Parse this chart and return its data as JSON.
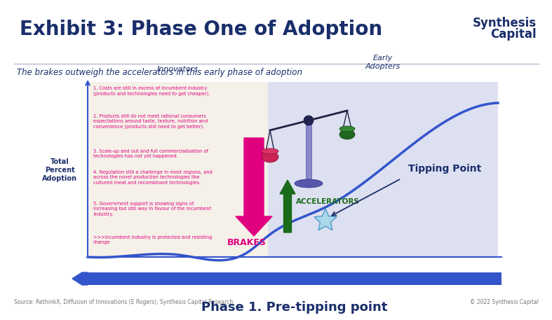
{
  "bg_color": "#ffffff",
  "title": "Exhibit 3: Phase One of Adoption",
  "title_color": "#1a2e6b",
  "title_fontsize": 20,
  "subtitle": "The brakes outweigh the accelerators in this early phase of adoption",
  "subtitle_color": "#1a2e6b",
  "subtitle_fontsize": 8.5,
  "logo_line1": "Synthesis",
  "logo_line2": "Capital",
  "logo_color": "#1a2e6b",
  "footer_left": "Source: RethinkX, Diffusion of Innovations (E Rogers), Synthesis Capital Research",
  "footer_right": "© 2022 Synthesis Capital",
  "footer_color": "#777777",
  "footer_fontsize": 5.5,
  "y_axis_label": "Total\nPercent\nAdoption",
  "y_axis_color": "#1a2e6b",
  "innovators_label": "Innovators",
  "early_adopters_label": "Early\nAdopters",
  "label_color": "#1a2e6b",
  "box_bg_color": "#f5f0e8",
  "box_bg_color2": "#dde0f0",
  "bullet_text_color": "#e0007f",
  "bullet_points": [
    "1. Costs are still in excess of incumbent industry\n(products and technologies need to get cheaper).",
    "2. Products still do not meet rational consumers\nexpectations around taste, texture, nutrition and\nconvenience (products still need to get better).",
    "3. Scale-up and out and full commercialisation of\ntechnologies has not yet happened.",
    "4. Regulation still a challenge in most regions, and\nacross the novel production technologies like\ncultured meat and recombinant technologies.",
    "5. Government support is showing signs of\nincreasing but still way in favour of the incumbent\nindustry."
  ],
  "incumbent_text": ">>>Incumbent industry is protected and resisting\nchange",
  "brakes_label": "BRAKES",
  "brakes_color": "#e0007f",
  "accelerators_label": "ACCELERATORS",
  "accelerators_color": "#1a6b1a",
  "tipping_point_label": "Tipping Point",
  "tipping_point_color": "#1a2e6b",
  "phase_label": "Phase 1. Pre-tipping point",
  "phase_color": "#1a2e6b",
  "phase_fontsize": 13,
  "curve_color": "#3355cc",
  "bar_color": "#3355cc",
  "divider_color": "#aaaacc",
  "axis_color": "#3355cc"
}
